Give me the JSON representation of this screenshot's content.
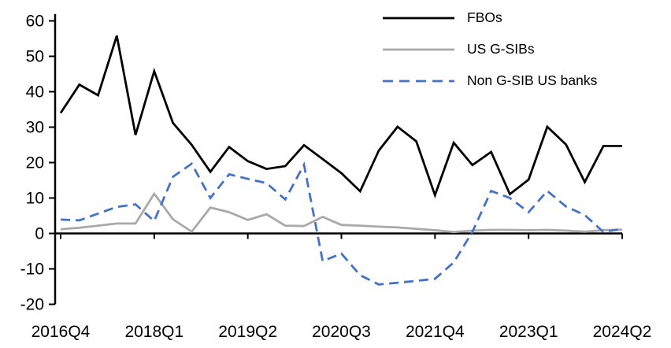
{
  "chart_data": {
    "type": "line",
    "title": "",
    "xlabel": "",
    "ylabel": "",
    "ylim": [
      -20,
      60
    ],
    "grid": false,
    "background": "#ffffff",
    "axis_color": "#000000",
    "legend_position": "top-right",
    "categories": [
      "2016Q4",
      "2017Q1",
      "2017Q2",
      "2017Q3",
      "2017Q4",
      "2018Q1",
      "2018Q2",
      "2018Q3",
      "2018Q4",
      "2019Q1",
      "2019Q2",
      "2019Q3",
      "2019Q4",
      "2020Q1",
      "2020Q2",
      "2020Q3",
      "2020Q4",
      "2021Q1",
      "2021Q2",
      "2021Q3",
      "2021Q4",
      "2022Q1",
      "2022Q2",
      "2022Q3",
      "2022Q4",
      "2023Q1",
      "2023Q2",
      "2023Q3",
      "2023Q4",
      "2024Q1",
      "2024Q2"
    ],
    "x_tick_labels": [
      "2016Q4",
      "2018Q1",
      "2019Q2",
      "2020Q3",
      "2021Q4",
      "2023Q1",
      "2024Q2"
    ],
    "x_tick_indices": [
      0,
      5,
      10,
      15,
      20,
      25,
      30
    ],
    "y_ticks": [
      60,
      50,
      40,
      30,
      20,
      10,
      0,
      -10,
      -20
    ],
    "series": [
      {
        "name": "FBOs",
        "color": "#000000",
        "line_style": "solid",
        "values": [
          34,
          42,
          39,
          55.8,
          27.8,
          45.8,
          31.2,
          25,
          17.4,
          24.4,
          20.4,
          18.2,
          19,
          24.9,
          21,
          17,
          11.9,
          23.4,
          30.1,
          26,
          10.8,
          25.6,
          19.3,
          23,
          11.1,
          15.2,
          30.1,
          25.1,
          14.5,
          24.7,
          24.7
        ]
      },
      {
        "name": "US G-SIBs",
        "color": "#A9A9A9",
        "line_style": "solid",
        "values": [
          1.2,
          1.6,
          2.2,
          2.8,
          2.8,
          11.2,
          4.0,
          0.5,
          7.3,
          6.0,
          3.8,
          5.4,
          2.2,
          2.1,
          4.7,
          2.4,
          2.2,
          1.9,
          1.7,
          1.3,
          0.9,
          0.4,
          0.8,
          1.0,
          1.0,
          0.9,
          1.0,
          0.8,
          0.5,
          0.9,
          1.1
        ]
      },
      {
        "name": "Non G-SIB US banks",
        "color": "#4472C4",
        "line_style": "dashed",
        "values": [
          3.9,
          3.7,
          5.6,
          7.5,
          8.2,
          3.5,
          16.0,
          19.7,
          10.0,
          16.7,
          15.4,
          14.2,
          9.6,
          19.4,
          -7.8,
          -5.7,
          -11.8,
          -14.4,
          -13.9,
          -13.4,
          -12.8,
          -8.2,
          0.5,
          12.0,
          10.0,
          6.0,
          12.0,
          7.6,
          5.2,
          0.4,
          1.3
        ]
      }
    ]
  }
}
